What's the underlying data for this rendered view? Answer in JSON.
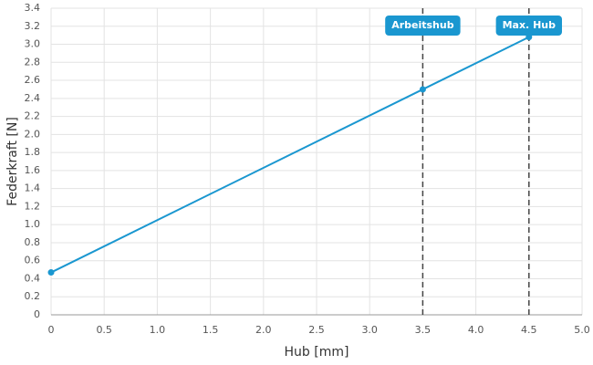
{
  "chart_data": {
    "type": "line",
    "x": [
      0,
      3.5,
      4.5
    ],
    "values": [
      0.47,
      2.5,
      3.08
    ],
    "color": "#1a97d0",
    "xlabel": "Hub [mm]",
    "ylabel": "Federkraft [N]",
    "xlim": [
      0,
      5
    ],
    "ylim": [
      0,
      3.4
    ],
    "xticks": [
      0,
      0.5,
      {
        "value": 1,
        "label": "1.0"
      },
      1.5,
      {
        "value": 2,
        "label": "2.0"
      },
      2.5,
      {
        "value": 3,
        "label": "3.0"
      },
      3.5,
      {
        "value": 4,
        "label": "4.0"
      },
      4.5,
      {
        "value": 5,
        "label": "5.0"
      }
    ],
    "yticks": [
      0,
      0.2,
      0.4,
      0.6,
      0.8,
      {
        "value": 1,
        "label": "1.0"
      },
      1.2,
      1.4,
      1.6,
      1.8,
      {
        "value": 2,
        "label": "2.0"
      },
      2.2,
      2.4,
      2.6,
      2.8,
      {
        "value": 3,
        "label": "3.0"
      },
      3.2,
      3.4
    ],
    "grid": true,
    "annotations": [
      {
        "x": 3.5,
        "label": "Arbeitshub"
      },
      {
        "x": 4.5,
        "label": "Max. Hub"
      }
    ]
  }
}
